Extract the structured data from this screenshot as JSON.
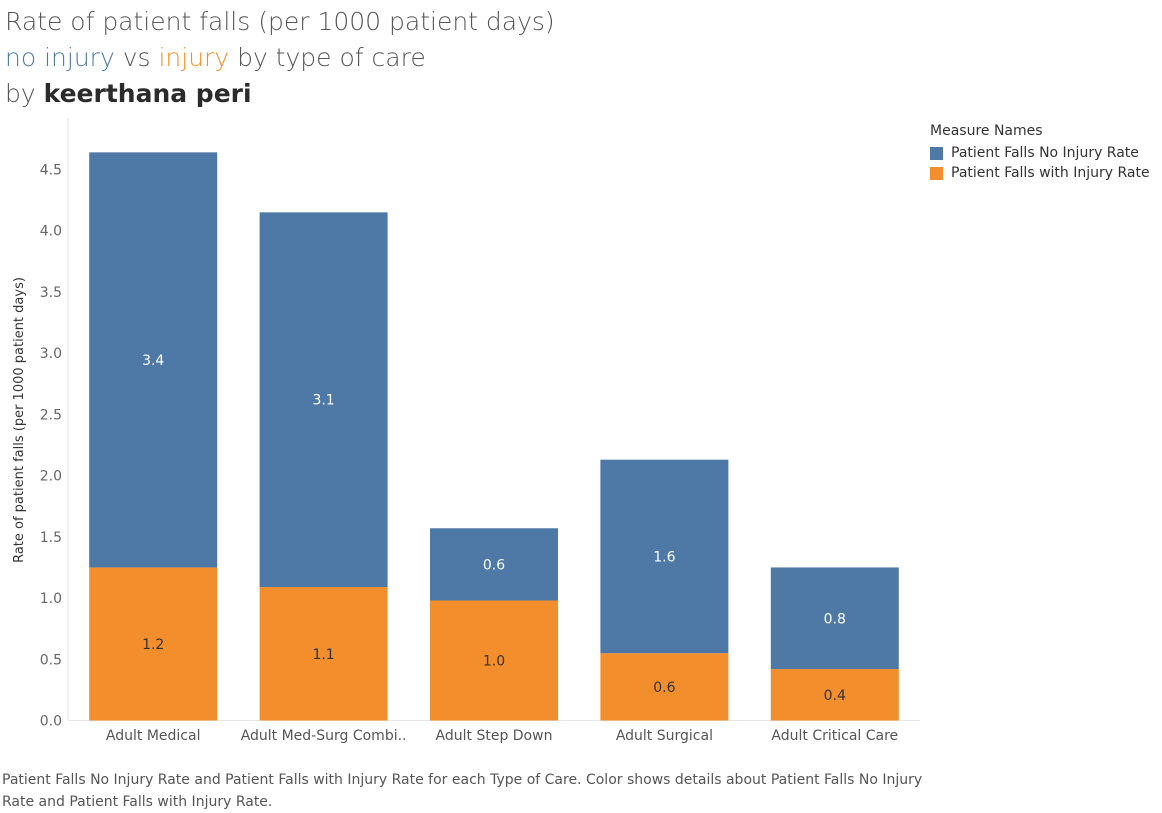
{
  "title": {
    "line1": "Rate of patient falls (per 1000 patient days)",
    "line2_part1": "no injury",
    "line2_part2": " vs ",
    "line2_part3": "injury",
    "line2_part4": " by type of care",
    "line3_prefix": "by ",
    "line3_author": "keerthana peri"
  },
  "legend": {
    "title": "Measure Names",
    "items": [
      {
        "label": "Patient Falls No Injury Rate",
        "color": "#4e79a7"
      },
      {
        "label": "Patient Falls with Injury Rate",
        "color": "#f28e2b"
      }
    ]
  },
  "caption": "Patient Falls No Injury Rate and Patient Falls with Injury Rate for each Type of Care.  Color shows details about Patient Falls No Injury Rate and Patient Falls with Injury Rate.",
  "chart_data": {
    "type": "bar",
    "stacked": true,
    "categories": [
      "Adult Medical",
      "Adult Med-Surg Combi..",
      "Adult Step Down",
      "Adult Surgical",
      "Adult Critical Care"
    ],
    "series": [
      {
        "name": "Patient Falls with Injury Rate",
        "color": "#f28e2b",
        "values": [
          1.25,
          1.09,
          0.98,
          0.55,
          0.42
        ],
        "labels": [
          "1.2",
          "1.1",
          "1.0",
          "0.6",
          "0.4"
        ],
        "label_color": "#333333"
      },
      {
        "name": "Patient Falls No Injury Rate",
        "color": "#4e79a7",
        "values": [
          3.39,
          3.06,
          0.59,
          1.58,
          0.83
        ],
        "labels": [
          "3.4",
          "3.1",
          "0.6",
          "1.6",
          "0.8"
        ],
        "label_color": "#ffffff"
      }
    ],
    "ylabel": "Rate of patient falls (per 1000 patient days)",
    "xlabel": "",
    "ylim": [
      0,
      4.7
    ],
    "yticks": [
      "0.0",
      "0.5",
      "1.0",
      "1.5",
      "2.0",
      "2.5",
      "3.0",
      "3.5",
      "4.0",
      "4.5"
    ],
    "grid": false
  }
}
